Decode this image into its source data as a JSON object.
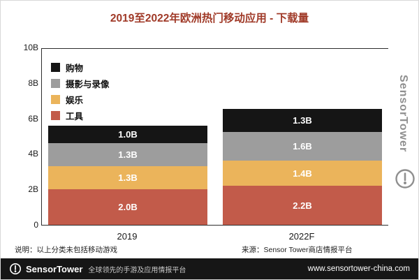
{
  "title": "2019至2022年欧洲热门移动应用 - 下载量",
  "chart_data": {
    "type": "bar",
    "stacked": true,
    "title": "2019至2022年欧洲热门移动应用 - 下载量",
    "categories": [
      "2019",
      "2022F"
    ],
    "unit": "B (billions of downloads)",
    "ylim": [
      0,
      10
    ],
    "grid": false,
    "legend_position": "top-left",
    "legend_order_top_to_bottom": [
      "购物",
      "摄影与录像",
      "娱乐",
      "工具"
    ],
    "y_ticks": [
      {
        "value": 0,
        "label": "0"
      },
      {
        "value": 2,
        "label": "2B"
      },
      {
        "value": 4,
        "label": "4B"
      },
      {
        "value": 6,
        "label": "6B"
      },
      {
        "value": 8,
        "label": "8B"
      },
      {
        "value": 10,
        "label": "10B"
      }
    ],
    "series": [
      {
        "name": "工具",
        "color": "#C25B4A",
        "values": [
          2.0,
          2.2
        ],
        "labels": [
          "2.0B",
          "2.2B"
        ]
      },
      {
        "name": "娱乐",
        "color": "#EBB45B",
        "values": [
          1.3,
          1.4
        ],
        "labels": [
          "1.3B",
          "1.4B"
        ]
      },
      {
        "name": "摄影与录像",
        "color": "#9D9D9D",
        "values": [
          1.3,
          1.6
        ],
        "labels": [
          "1.3B",
          "1.6B"
        ]
      },
      {
        "name": "购物",
        "color": "#151515",
        "values": [
          1.0,
          1.3
        ],
        "labels": [
          "1.0B",
          "1.3B"
        ]
      }
    ],
    "totals": [
      5.6,
      6.5
    ]
  },
  "notes": {
    "left": "说明：以上分类未包括移动游戏",
    "source": "来源：Sensor Tower商店情报平台"
  },
  "watermark": {
    "brand": "SensorTower"
  },
  "footer": {
    "brand": "SensorTower",
    "tagline": "全球领先的手游及应用情报平台",
    "url": "www.sensortower-china.com"
  },
  "colors": {
    "title": "#A03A28",
    "axis": "#2D2D2D",
    "footer_bg": "#161616",
    "watermark": "#8F8F8F"
  }
}
